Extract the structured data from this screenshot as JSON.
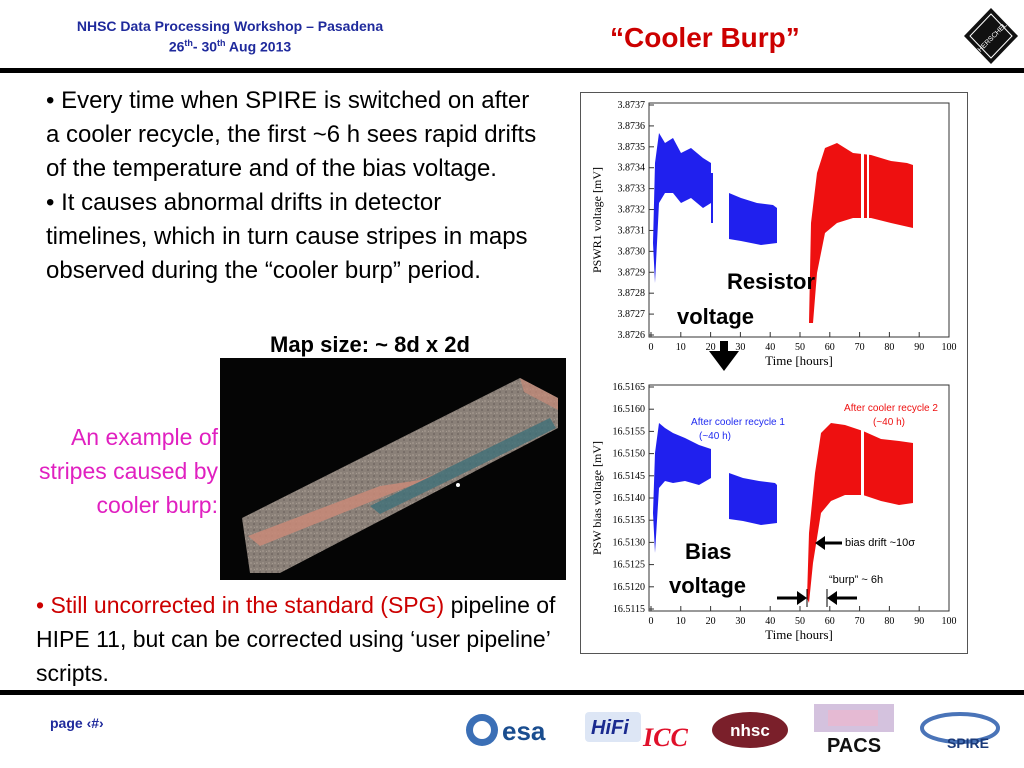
{
  "header": {
    "workshop": "NHSC Data Processing Workshop – Pasadena",
    "dates_day1": "26",
    "dates_sup1": "th",
    "dates_mid": "- 30",
    "dates_sup2": "th",
    "dates_rest": " Aug 2013",
    "title": "“Cooler Burp”"
  },
  "bullets": [
    "• Every time when SPIRE is switched on after a  cooler recycle, the first  ~6 h sees rapid drifts of the temperature and of the bias voltage.",
    "• It causes abnormal drifts in detector timelines, which in turn cause stripes in maps observed during the “cooler burp” period."
  ],
  "map": {
    "title": "Map size: ~ 8d x 2d",
    "example_caption": "An example of stripes caused by cooler burp:"
  },
  "bullet3": {
    "marker": "• ",
    "red_text": "Still uncorrected in the standard (SPG)",
    "black_text": " pipeline of HIPE 11, but can be corrected using ‘user pipeline’ scripts."
  },
  "plots": {
    "top": {
      "ylabel": "PSWR1 voltage [mV]",
      "xlabel": "Time [hours]",
      "yticks": [
        "3.8737",
        "3.8736",
        "3.8735",
        "3.8734",
        "3.8733",
        "3.8732",
        "3.8731",
        "3.8730",
        "3.8729",
        "3.8728",
        "3.8727",
        "3.8726"
      ],
      "xticks": [
        "0",
        "10",
        "20",
        "30",
        "40",
        "50",
        "60",
        "70",
        "80",
        "90",
        "100"
      ],
      "annotation_line1": "Resistor",
      "annotation_line2": "voltage"
    },
    "bottom": {
      "ylabel": "PSW bias voltage [mV]",
      "xlabel": "Time [hours]",
      "yticks": [
        "16.5165",
        "16.5160",
        "16.5155",
        "16.5150",
        "16.5145",
        "16.5140",
        "16.5135",
        "16.5130",
        "16.5125",
        "16.5120",
        "16.5115"
      ],
      "xticks": [
        "0",
        "10",
        "20",
        "30",
        "40",
        "50",
        "60",
        "70",
        "80",
        "90",
        "100"
      ],
      "annot_recycle1_l1": "After cooler recycle 1",
      "annot_recycle1_l2": "(~40 h)",
      "annot_recycle2_l1": "After cooler recycle 2",
      "annot_recycle2_l2": "(~40 h)",
      "annot_drift": "bias drift ~10σ",
      "annot_burp": "“burp” ~ 6h",
      "annotation_line1": "Bias",
      "annotation_line2": "voltage"
    }
  },
  "footer": {
    "page": "page ‹#›",
    "logos": [
      "esa",
      "HiFi",
      "ICC",
      "nhsc",
      "PACS",
      "SPIRE"
    ]
  },
  "colors": {
    "header_blue": "#1f2a9c",
    "title_red": "#cc0000",
    "series_blue": "#2020ee",
    "series_red": "#ee1010",
    "caption_magenta": "#e020c0"
  }
}
